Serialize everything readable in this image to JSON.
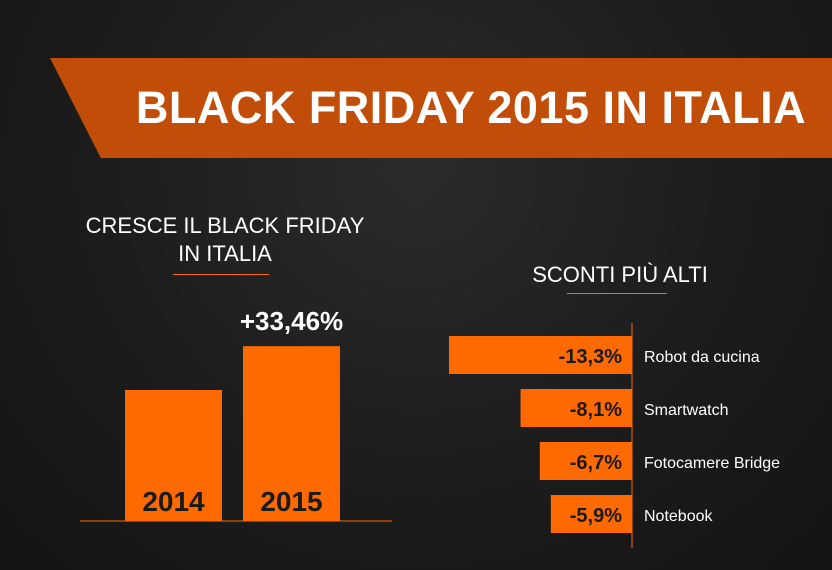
{
  "banner": {
    "title": "BLACK FRIDAY 2015 IN ITALIA"
  },
  "colors": {
    "accent": "#ff6a00",
    "banner": "#c24d08",
    "background": "#1c1c1c"
  },
  "chart_data": [
    {
      "type": "bar",
      "title": "CRESCE IL BLACK FRIDAY IN ITALIA",
      "title_lines": [
        "CRESCE IL BLACK FRIDAY",
        "IN ITALIA"
      ],
      "categories": [
        "2014",
        "2015"
      ],
      "values": [
        100,
        133.46
      ],
      "annotation": "+33,46%",
      "orientation": "vertical"
    },
    {
      "type": "bar",
      "title": "SCONTI PIÙ ALTI",
      "orientation": "horizontal",
      "categories": [
        "Robot da cucina",
        "Smartwatch",
        "Fotocamere Bridge",
        "Notebook"
      ],
      "values": [
        -13.3,
        -8.1,
        -6.7,
        -5.9
      ],
      "value_labels": [
        "-13,3%",
        "-8,1%",
        "-6,7%",
        "-5,9%"
      ]
    }
  ]
}
